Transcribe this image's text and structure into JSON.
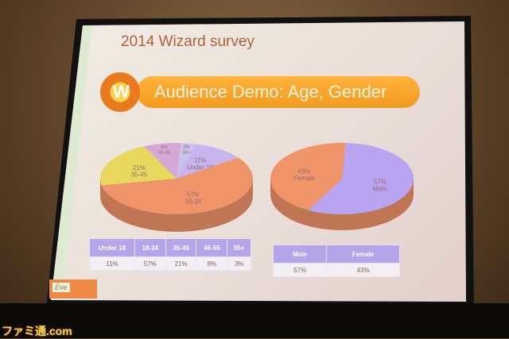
{
  "slide": {
    "title": "2014 Wizard survey",
    "banner": "Audience Demo: Age, Gender",
    "logo_text": "W",
    "footer_text": "Eve"
  },
  "watermark": "ファミ通.com",
  "chart_data": [
    {
      "type": "pie",
      "categories": [
        "Under 18",
        "18-34",
        "35-45",
        "46-55",
        "55+"
      ],
      "values": [
        11,
        57,
        21,
        8,
        3
      ],
      "labels": [
        "11%",
        "57%",
        "21%",
        "8%",
        "3%"
      ],
      "colors": [
        "#c8b4ee",
        "#f0946a",
        "#e8d860",
        "#d6a8d8",
        "#c8c4ee"
      ],
      "table": {
        "headers": [
          "Under 18",
          "18-34",
          "35-45",
          "46-55",
          "55+"
        ],
        "values": [
          "11%",
          "57%",
          "21%",
          "8%",
          "3%"
        ]
      }
    },
    {
      "type": "pie",
      "categories": [
        "Male",
        "Female"
      ],
      "values": [
        57,
        43
      ],
      "labels": [
        "57%",
        "43%"
      ],
      "colors": [
        "#b8a4f0",
        "#f0946a"
      ],
      "table": {
        "headers": [
          "Male",
          "Female"
        ],
        "values": [
          "57%",
          "43%"
        ]
      }
    }
  ]
}
